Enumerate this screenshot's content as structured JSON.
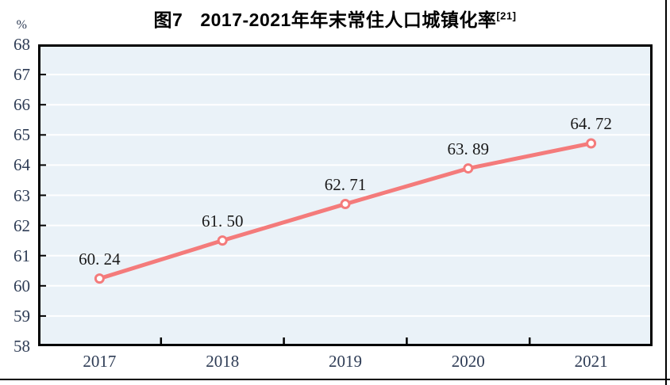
{
  "chart_data": {
    "type": "line",
    "title_fig": "图7",
    "title_text": "2017-2021年年末常住人口城镇化率",
    "title_superscript": "[21]",
    "unit": "%",
    "categories": [
      "2017",
      "2018",
      "2019",
      "2020",
      "2021"
    ],
    "values": [
      60.24,
      61.5,
      62.71,
      63.89,
      64.72
    ],
    "point_labels": [
      "60. 24",
      "61. 50",
      "62. 71",
      "63. 89",
      "64. 72"
    ],
    "ylim": [
      58,
      68
    ],
    "y_tick_labels": [
      "68",
      "67",
      "66",
      "65",
      "64",
      "63",
      "62",
      "61",
      "60",
      "59",
      "58"
    ],
    "grid": true,
    "legend_position": "none",
    "colors": {
      "line": "#F47B7B",
      "marker_fill": "#FFFFFF",
      "plot_background": "#EAF2F8",
      "gridline": "#FFFFFF",
      "frame": "#000000",
      "axis_label": "#2E3C55",
      "data_label": "#1A1A1A"
    }
  }
}
